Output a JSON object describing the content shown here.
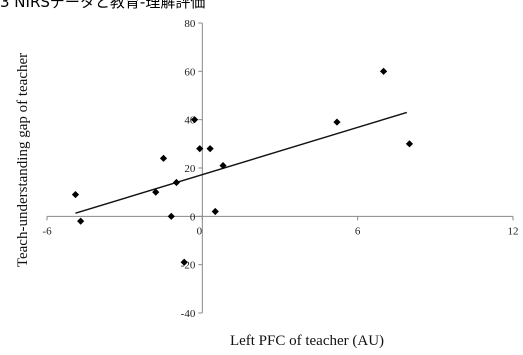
{
  "header_fragment": "3 NIRSデータと教育-理解評価",
  "chart_data": {
    "type": "scatter",
    "xlabel": "Left PFC of teacher (AU)",
    "ylabel": "Teach-understanding gap of teacher",
    "xlim": [
      -6,
      12
    ],
    "ylim": [
      -40,
      80
    ],
    "x_ticks": [
      "-6",
      "0",
      "6",
      "12"
    ],
    "y_ticks": [
      "80",
      "60",
      "40",
      "20",
      "0",
      "-20",
      "-40"
    ],
    "grid": false,
    "legend": "none",
    "marker_color": "#000000",
    "points": [
      {
        "x": -4.9,
        "y": 9
      },
      {
        "x": -4.7,
        "y": -2
      },
      {
        "x": -1.8,
        "y": 10
      },
      {
        "x": -1.5,
        "y": 24
      },
      {
        "x": -1.2,
        "y": 0
      },
      {
        "x": -1.0,
        "y": 14
      },
      {
        "x": -0.7,
        "y": -19
      },
      {
        "x": -0.3,
        "y": 40
      },
      {
        "x": -0.1,
        "y": 28
      },
      {
        "x": 0.3,
        "y": 28
      },
      {
        "x": 0.5,
        "y": 2
      },
      {
        "x": 0.8,
        "y": 21
      },
      {
        "x": 5.2,
        "y": 39
      },
      {
        "x": 7.0,
        "y": 60
      },
      {
        "x": 8.0,
        "y": 30
      }
    ],
    "trendline": {
      "x": [
        -4.9,
        7.9
      ],
      "y": [
        1.3,
        43
      ]
    }
  }
}
